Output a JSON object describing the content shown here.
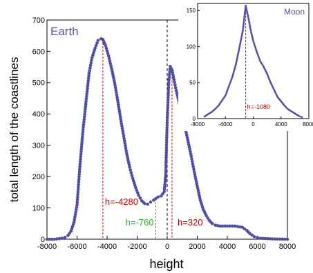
{
  "chart_data": [
    {
      "type": "scatter",
      "panel": "main",
      "title": "",
      "xlabel": "height",
      "ylabel": "total length of the coastlines",
      "xlim": [
        -8000,
        8000
      ],
      "ylim": [
        0,
        700
      ],
      "xticks": [
        -8000,
        -6000,
        -4000,
        -2000,
        0,
        2000,
        4000,
        6000,
        8000
      ],
      "yticks": [
        0,
        100,
        200,
        300,
        400,
        500,
        600,
        700
      ],
      "grid": false,
      "series": [
        {
          "name": "Earth",
          "color": "#4f4fa8",
          "x": [
            -8000,
            -7500,
            -7000,
            -6800,
            -6600,
            -6400,
            -6200,
            -6000,
            -5800,
            -5600,
            -5400,
            -5200,
            -5000,
            -4800,
            -4600,
            -4400,
            -4280,
            -4100,
            -3900,
            -3700,
            -3500,
            -3300,
            -3100,
            -2900,
            -2700,
            -2500,
            -2300,
            -2100,
            -1900,
            -1700,
            -1500,
            -1300,
            -1100,
            -900,
            -760,
            -600,
            -400,
            -200,
            -100,
            0,
            100,
            200,
            320,
            450,
            600,
            800,
            1000,
            1200,
            1400,
            1600,
            1800,
            2000,
            2200,
            2400,
            2600,
            2800,
            3000,
            3200,
            3500,
            4000,
            4500,
            5000,
            5300,
            5500,
            5800,
            6200,
            7000,
            8000
          ],
          "y": [
            0,
            0,
            3,
            6,
            12,
            26,
            55,
            110,
            240,
            350,
            440,
            530,
            580,
            610,
            635,
            640,
            638,
            618,
            585,
            545,
            500,
            445,
            385,
            330,
            275,
            230,
            195,
            165,
            140,
            123,
            114,
            112,
            119,
            125,
            130,
            135,
            138,
            152,
            205,
            380,
            500,
            552,
            540,
            510,
            475,
            435,
            395,
            355,
            310,
            265,
            215,
            170,
            125,
            95,
            75,
            60,
            50,
            45,
            42,
            42,
            42,
            38,
            28,
            18,
            8,
            3,
            1,
            0
          ]
        }
      ],
      "annotations": [
        {
          "label": "h=-4280",
          "x": -4280,
          "color": "#cc0000",
          "style": "dashed"
        },
        {
          "label": "h=-760",
          "x": -760,
          "color": "#22bb22",
          "style": "dashed"
        },
        {
          "label": "h=320",
          "x": 320,
          "color": "#cc0000",
          "style": "dashed"
        }
      ],
      "reference_line": {
        "x": 0,
        "color": "#000000",
        "style": "dashed"
      }
    },
    {
      "type": "scatter",
      "panel": "inset",
      "title": "",
      "xlabel": "",
      "ylabel": "",
      "xlim": [
        -8000,
        8000
      ],
      "ylim": [
        0,
        160
      ],
      "xticks": [
        -8000,
        -4000,
        0,
        4000,
        8000
      ],
      "yticks": [
        0,
        50,
        100,
        150
      ],
      "grid": false,
      "series": [
        {
          "name": "Moon",
          "color": "#4f4fa8",
          "x": [
            -7000,
            -6500,
            -6000,
            -5500,
            -5000,
            -4500,
            -4000,
            -3500,
            -3000,
            -2500,
            -2000,
            -1500,
            -1080,
            -700,
            -300,
            0,
            500,
            1000,
            1500,
            2000,
            2500,
            3000,
            3500,
            4000,
            4500,
            5000,
            5500,
            6000,
            6500,
            7000
          ],
          "y": [
            3,
            6,
            9,
            13,
            18,
            25,
            32,
            45,
            58,
            75,
            98,
            122,
            157,
            140,
            120,
            108,
            93,
            80,
            72,
            62,
            50,
            40,
            30,
            24,
            18,
            13,
            10,
            7,
            4,
            2
          ]
        }
      ],
      "annotations": [
        {
          "label": "h=-1080",
          "x": -1080,
          "color": "#cc0000",
          "style": "dashed"
        }
      ]
    }
  ]
}
